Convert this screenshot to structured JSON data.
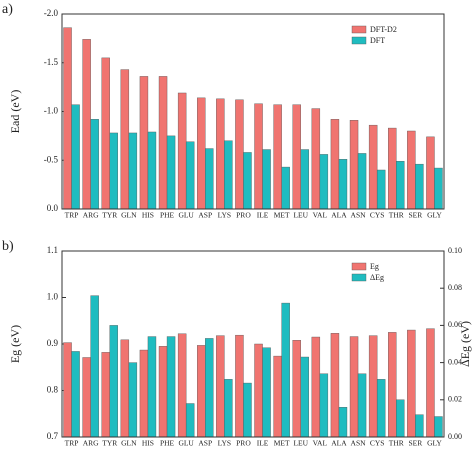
{
  "chart_data": [
    {
      "type": "bar",
      "panel_label": "a)",
      "y_label": "Ead (eV)",
      "categories": [
        "TRP",
        "ARG",
        "TYR",
        "GLN",
        "HIS",
        "PHE",
        "GLU",
        "ASP",
        "LYS",
        "PRO",
        "ILE",
        "MET",
        "LEU",
        "VAL",
        "ALA",
        "ASN",
        "CYS",
        "THR",
        "SER",
        "GLY"
      ],
      "series": [
        {
          "name": "DFT-D2",
          "color": "#f07470",
          "values": [
            -1.86,
            -1.74,
            -1.55,
            -1.43,
            -1.36,
            -1.36,
            -1.19,
            -1.14,
            -1.13,
            -1.12,
            -1.08,
            -1.07,
            -1.07,
            -1.03,
            -0.92,
            -0.91,
            -0.86,
            -0.83,
            -0.8,
            -0.74
          ]
        },
        {
          "name": "DFT",
          "color": "#1fbcc0",
          "values": [
            -1.07,
            -0.92,
            -0.78,
            -0.78,
            -0.79,
            -0.75,
            -0.69,
            -0.62,
            -0.7,
            -0.58,
            -0.61,
            -0.43,
            -0.61,
            -0.56,
            -0.51,
            -0.57,
            -0.4,
            -0.49,
            -0.46,
            -0.42
          ]
        }
      ],
      "ylim": [
        0,
        -2
      ],
      "yticks": [
        {
          "value": -2,
          "label": "-2.0"
        },
        -1.5,
        {
          "value": -1,
          "label": "-1.0"
        },
        -0.5,
        {
          "value": 0,
          "label": "0.0"
        }
      ],
      "legend": "upper right"
    },
    {
      "type": "bar",
      "panel_label": "b)",
      "y_label": "Eg (eV)",
      "y2_label": "ΔEg (eV)",
      "categories": [
        "TRP",
        "ARG",
        "TYR",
        "GLN",
        "HIS",
        "PHE",
        "GLU",
        "ASP",
        "LYS",
        "PRO",
        "ILE",
        "MET",
        "LEU",
        "VAL",
        "ALA",
        "ASN",
        "CYS",
        "THR",
        "SER",
        "GLY"
      ],
      "series": [
        {
          "name": "Eg",
          "color": "#f07470",
          "values": [
            0.903,
            0.871,
            0.882,
            0.909,
            0.887,
            0.895,
            0.922,
            0.897,
            0.918,
            0.919,
            0.9,
            0.874,
            0.908,
            0.915,
            0.923,
            0.916,
            0.918,
            0.925,
            0.93,
            0.933
          ]
        },
        {
          "name": "ΔEg",
          "color": "#1fbcc0",
          "axis": "y2",
          "values": [
            0.046,
            0.076,
            0.06,
            0.04,
            0.054,
            0.054,
            0.018,
            0.053,
            0.031,
            0.029,
            0.048,
            0.072,
            0.043,
            0.034,
            0.016,
            0.034,
            0.031,
            0.02,
            0.012,
            0.011
          ]
        }
      ],
      "ylim": [
        0.7,
        1.1
      ],
      "yticks": [
        0.7,
        0.8,
        0.9,
        {
          "value": 1,
          "label": "1.0"
        },
        1.1
      ],
      "y2lim": [
        0,
        0.1
      ],
      "y2ticks": [
        {
          "value": 0,
          "label": "0.00"
        },
        {
          "value": 0.02,
          "label": "0.02"
        },
        {
          "value": 0.04,
          "label": "0.04"
        },
        {
          "value": 0.06,
          "label": "0.06"
        },
        {
          "value": 0.08,
          "label": "0.08"
        },
        {
          "value": 0.1,
          "label": "0.10"
        }
      ],
      "legend": "upper right"
    }
  ]
}
